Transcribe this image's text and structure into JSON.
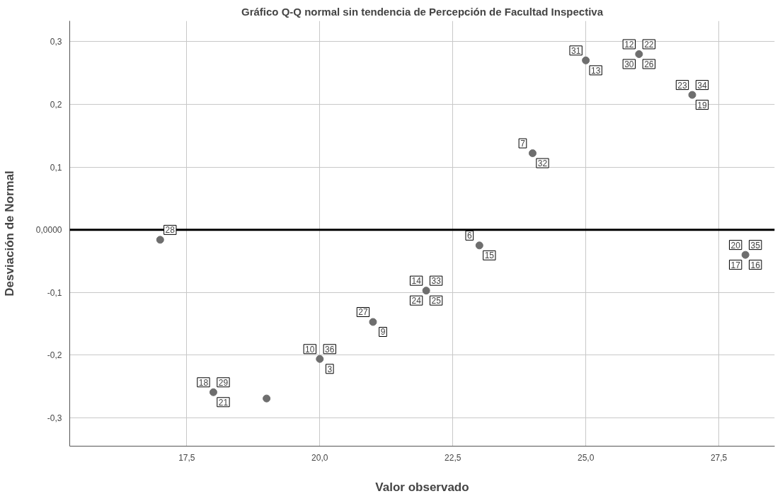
{
  "chart_data": {
    "type": "scatter",
    "title": "Gráfico Q-Q normal sin tendencia de Percepción de Facultad Inspectiva",
    "xlabel": "Valor observado",
    "ylabel": "Desviación de Normal",
    "x": [
      17,
      18,
      19,
      20,
      21,
      22,
      23,
      24,
      25,
      26,
      27,
      28
    ],
    "values": [
      -0.016,
      -0.259,
      -0.269,
      -0.206,
      -0.147,
      -0.097,
      -0.025,
      0.122,
      0.27,
      0.28,
      0.215,
      -0.04
    ],
    "color": "#6e6e6e",
    "marker": "circle",
    "grid": true,
    "xlim": [
      15.3,
      28.55
    ],
    "ylim": [
      -0.345,
      0.333
    ],
    "xticks": [
      {
        "value": 17.5,
        "label": "17,5"
      },
      {
        "value": 20,
        "label": "20,0"
      },
      {
        "value": 22.5,
        "label": "22,5"
      },
      {
        "value": 25,
        "label": "25,0"
      },
      {
        "value": 27.5,
        "label": "27,5"
      }
    ],
    "yticks": [
      {
        "value": -0.3,
        "label": "-0,3"
      },
      {
        "value": -0.2,
        "label": "-0,2"
      },
      {
        "value": -0.1,
        "label": "-0,1"
      },
      {
        "value": 0,
        "label": "0,0000"
      },
      {
        "value": 0.1,
        "label": "0,1"
      },
      {
        "value": 0.2,
        "label": "0,2"
      },
      {
        "value": 0.3,
        "label": "0,3"
      }
    ],
    "ref_lines": [
      {
        "axis": "y",
        "value": 0,
        "color": "#000000"
      }
    ],
    "annotations": [
      {
        "text": "28",
        "x": 17,
        "y": -0.016
      },
      {
        "text": "18",
        "x": 18,
        "y": -0.259
      },
      {
        "text": "29",
        "x": 18,
        "y": -0.259
      },
      {
        "text": "21",
        "x": 18,
        "y": -0.259
      },
      {
        "text": "10",
        "x": 20,
        "y": -0.206
      },
      {
        "text": "36",
        "x": 20,
        "y": -0.206
      },
      {
        "text": "3",
        "x": 20,
        "y": -0.206
      },
      {
        "text": "27",
        "x": 21,
        "y": -0.147
      },
      {
        "text": "9",
        "x": 21,
        "y": -0.147
      },
      {
        "text": "14",
        "x": 22,
        "y": -0.097
      },
      {
        "text": "33",
        "x": 22,
        "y": -0.097
      },
      {
        "text": "24",
        "x": 22,
        "y": -0.097
      },
      {
        "text": "25",
        "x": 22,
        "y": -0.097
      },
      {
        "text": "6",
        "x": 23,
        "y": -0.025
      },
      {
        "text": "15",
        "x": 23,
        "y": -0.025
      },
      {
        "text": "7",
        "x": 24,
        "y": 0.122
      },
      {
        "text": "32",
        "x": 24,
        "y": 0.122
      },
      {
        "text": "31",
        "x": 25,
        "y": 0.27
      },
      {
        "text": "13",
        "x": 25,
        "y": 0.27
      },
      {
        "text": "12",
        "x": 26,
        "y": 0.28
      },
      {
        "text": "22",
        "x": 26,
        "y": 0.28
      },
      {
        "text": "30",
        "x": 26,
        "y": 0.28
      },
      {
        "text": "26",
        "x": 26,
        "y": 0.28
      },
      {
        "text": "23",
        "x": 27,
        "y": 0.215
      },
      {
        "text": "34",
        "x": 27,
        "y": 0.215
      },
      {
        "text": "19",
        "x": 27,
        "y": 0.215
      },
      {
        "text": "20",
        "x": 28,
        "y": -0.04
      },
      {
        "text": "35",
        "x": 28,
        "y": -0.04
      },
      {
        "text": "17",
        "x": 28,
        "y": -0.04
      },
      {
        "text": "16",
        "x": 28,
        "y": -0.04
      }
    ]
  }
}
